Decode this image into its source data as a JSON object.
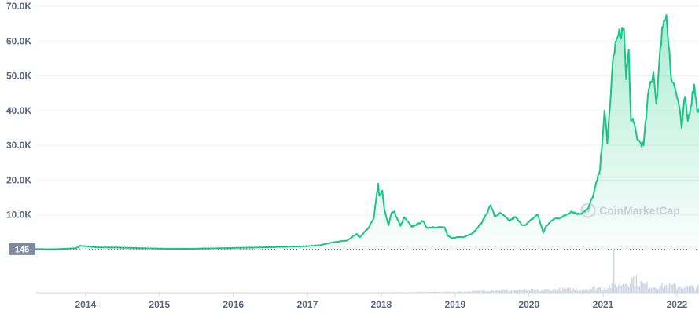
{
  "watermark": "CoinMarketCap",
  "price_marker_label": "145",
  "colors": {
    "line": "#16c784",
    "area_top": "#16c784",
    "volume": "#cfd6e4",
    "grid": "#eff2f5",
    "axis_text": "#58667e",
    "marker_bg": "#808a9d"
  },
  "chart_data": [
    {
      "type": "area",
      "name": "price",
      "ylim": [
        0,
        70000
      ],
      "xlim": [
        "2013-04-28",
        "2022-04-20"
      ],
      "ytick_labels": [
        "10.0K",
        "20.0K",
        "30.0K",
        "40.0K",
        "50.0K",
        "60.0K",
        "70.0K"
      ],
      "ytick_values": [
        10000,
        20000,
        30000,
        40000,
        50000,
        60000,
        70000
      ],
      "xtick_labels": [
        "2014",
        "2015",
        "2016",
        "2017",
        "2018",
        "2019",
        "2020",
        "2021",
        "2022"
      ],
      "xtick_values": [
        "2014-01-01",
        "2015-01-01",
        "2016-01-01",
        "2017-01-01",
        "2018-01-01",
        "2019-01-01",
        "2020-01-01",
        "2021-01-01",
        "2022-01-01"
      ],
      "reference_line": 145,
      "grid": true,
      "x": [
        "2013-04-28",
        "2013-08-01",
        "2013-11-15",
        "2013-12-05",
        "2014-01-15",
        "2014-03-01",
        "2014-06-01",
        "2014-09-01",
        "2015-01-15",
        "2015-06-01",
        "2015-12-01",
        "2016-06-01",
        "2016-12-31",
        "2017-03-01",
        "2017-05-20",
        "2017-07-15",
        "2017-09-01",
        "2017-09-15",
        "2017-11-01",
        "2017-11-25",
        "2017-12-17",
        "2017-12-22",
        "2018-01-06",
        "2018-01-17",
        "2018-02-06",
        "2018-02-20",
        "2018-03-05",
        "2018-04-06",
        "2018-04-25",
        "2018-06-01",
        "2018-07-25",
        "2018-08-15",
        "2018-09-15",
        "2018-11-10",
        "2018-11-25",
        "2018-12-15",
        "2019-01-15",
        "2019-02-15",
        "2019-04-02",
        "2019-05-15",
        "2019-06-26",
        "2019-07-15",
        "2019-08-15",
        "2019-09-25",
        "2019-10-26",
        "2019-11-25",
        "2019-12-18",
        "2020-02-12",
        "2020-03-12",
        "2020-03-25",
        "2020-05-01",
        "2020-06-15",
        "2020-07-27",
        "2020-09-05",
        "2020-10-20",
        "2020-11-15",
        "2020-12-17",
        "2021-01-08",
        "2021-01-22",
        "2021-02-21",
        "2021-03-13",
        "2021-04-14",
        "2021-04-25",
        "2021-05-08",
        "2021-05-19",
        "2021-06-01",
        "2021-06-22",
        "2021-07-20",
        "2021-08-15",
        "2021-09-07",
        "2021-09-21",
        "2021-10-20",
        "2021-11-10",
        "2021-11-25",
        "2021-12-04",
        "2021-12-20",
        "2022-01-10",
        "2022-01-24",
        "2022-02-10",
        "2022-02-24",
        "2022-03-28",
        "2022-04-11",
        "2022-04-20"
      ],
      "y": [
        145,
        100,
        400,
        1100,
        900,
        620,
        600,
        450,
        260,
        230,
        430,
        650,
        960,
        1250,
        2200,
        2600,
        4500,
        3500,
        6400,
        9000,
        19000,
        15500,
        17000,
        11500,
        7000,
        10500,
        11000,
        6800,
        9300,
        6500,
        8200,
        6300,
        6500,
        6400,
        4000,
        3300,
        3600,
        3700,
        4900,
        8000,
        12800,
        9600,
        10500,
        8300,
        9400,
        7200,
        7200,
        10200,
        4900,
        6700,
        8800,
        9400,
        11000,
        10200,
        11800,
        16000,
        23000,
        40000,
        30500,
        56000,
        61000,
        63500,
        49000,
        57500,
        37000,
        36500,
        31500,
        30000,
        46000,
        51000,
        42000,
        64000,
        67500,
        57000,
        49000,
        47000,
        41800,
        35000,
        44000,
        37000,
        47500,
        40000,
        40500
      ]
    },
    {
      "type": "bar",
      "name": "volume",
      "relative_heights": [
        0.02,
        0.02,
        0.03,
        0.03,
        0.03,
        0.04,
        0.05,
        0.06,
        0.06,
        0.07,
        0.08,
        0.1,
        0.15,
        0.2,
        0.2,
        0.18,
        0.18,
        0.19,
        0.2,
        0.22,
        0.25,
        0.26,
        0.25,
        0.3,
        0.35,
        0.4,
        0.55,
        0.7,
        1.0,
        0.6,
        0.45,
        0.5,
        0.5,
        0.45,
        0.4,
        0.38
      ]
    }
  ]
}
